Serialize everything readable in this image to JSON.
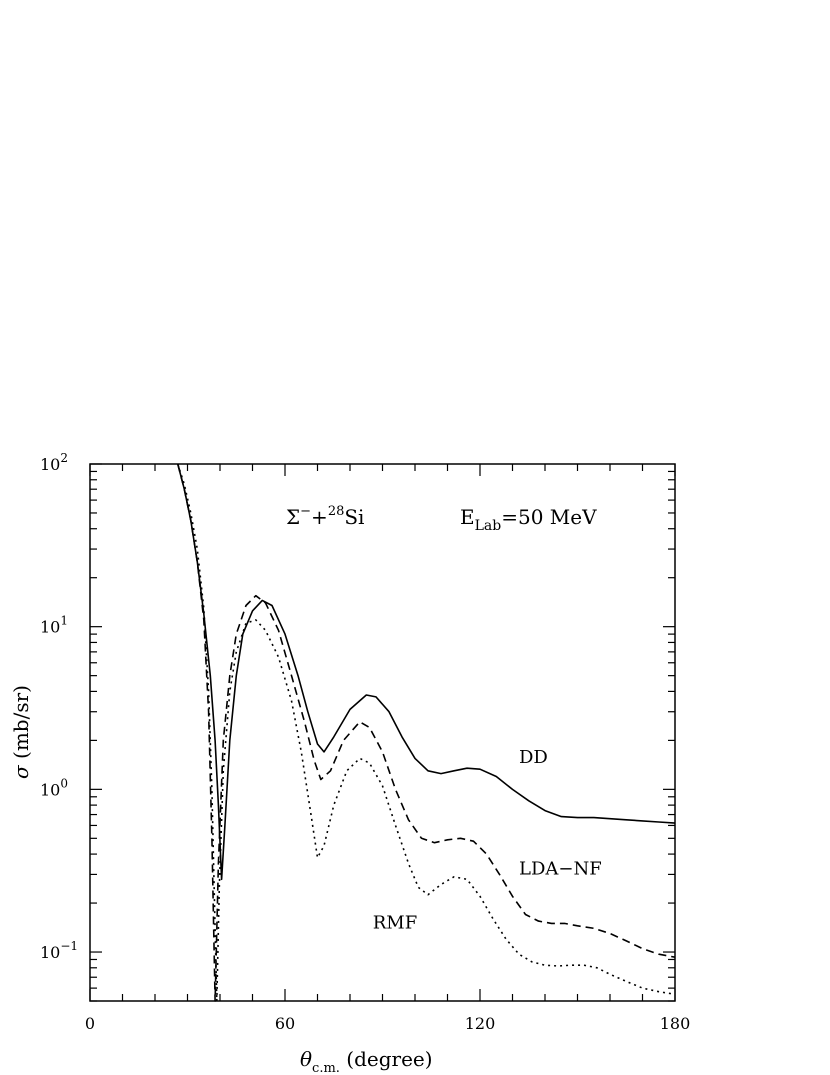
{
  "chart_data": {
    "type": "line",
    "title_parts": {
      "sigma": "Σ",
      "charge": "−",
      "plus": "+",
      "mass": "28",
      "element": "Si",
      "e": "E",
      "lab": "Lab",
      "energy": "=50  MeV"
    },
    "xlabel": {
      "symbol": "θ",
      "sub": "c.m.",
      "rest": " (degree)"
    },
    "ylabel": {
      "symbol": "σ",
      "rest": " (mb/sr)"
    },
    "xlim": [
      0,
      180
    ],
    "ylim": [
      0.05,
      100
    ],
    "yscale": "log",
    "x_ticks": [
      {
        "value": 0,
        "label": "0"
      },
      {
        "value": 60,
        "label": "60"
      },
      {
        "value": 120,
        "label": "120"
      },
      {
        "value": 180,
        "label": "180"
      }
    ],
    "y_ticks": [
      {
        "value": 100,
        "base": "10",
        "exp": "2"
      },
      {
        "value": 10,
        "base": "10",
        "exp": "1"
      },
      {
        "value": 1,
        "base": "10",
        "exp": "0"
      },
      {
        "value": 0.1,
        "base": "10",
        "exp": "−1"
      }
    ],
    "series": [
      {
        "name": "DD",
        "style": "solid",
        "label_at": [
          132,
          1.45
        ],
        "points": [
          [
            27,
            100
          ],
          [
            29,
            70
          ],
          [
            31,
            45
          ],
          [
            33,
            25
          ],
          [
            35,
            12
          ],
          [
            37,
            5
          ],
          [
            38.5,
            2
          ],
          [
            39.5,
            0.8
          ],
          [
            40.5,
            0.28
          ],
          [
            41.5,
            0.6
          ],
          [
            43,
            2
          ],
          [
            45,
            5
          ],
          [
            47,
            9
          ],
          [
            50,
            12.5
          ],
          [
            53,
            14.5
          ],
          [
            56,
            13.5
          ],
          [
            60,
            9
          ],
          [
            64,
            5
          ],
          [
            67,
            3
          ],
          [
            70,
            1.9
          ],
          [
            72,
            1.7
          ],
          [
            75,
            2.1
          ],
          [
            80,
            3.1
          ],
          [
            85,
            3.8
          ],
          [
            88,
            3.7
          ],
          [
            92,
            3.0
          ],
          [
            96,
            2.1
          ],
          [
            100,
            1.55
          ],
          [
            104,
            1.3
          ],
          [
            108,
            1.25
          ],
          [
            112,
            1.3
          ],
          [
            116,
            1.35
          ],
          [
            120,
            1.33
          ],
          [
            125,
            1.2
          ],
          [
            130,
            1.0
          ],
          [
            135,
            0.85
          ],
          [
            140,
            0.74
          ],
          [
            145,
            0.68
          ],
          [
            150,
            0.67
          ],
          [
            155,
            0.67
          ],
          [
            160,
            0.66
          ],
          [
            165,
            0.65
          ],
          [
            170,
            0.64
          ],
          [
            175,
            0.63
          ],
          [
            180,
            0.62
          ]
        ]
      },
      {
        "name": "LDA−NF",
        "style": "dashed",
        "label_at": [
          132,
          0.3
        ],
        "points": [
          [
            27,
            100
          ],
          [
            29,
            70
          ],
          [
            31,
            45
          ],
          [
            33,
            25
          ],
          [
            35,
            11
          ],
          [
            36.5,
            3
          ],
          [
            37.5,
            0.5
          ],
          [
            38.5,
            0.05
          ],
          [
            39.5,
            0.35
          ],
          [
            41,
            2
          ],
          [
            43,
            5
          ],
          [
            45,
            9
          ],
          [
            48,
            13.5
          ],
          [
            51,
            15.5
          ],
          [
            54,
            14
          ],
          [
            58,
            9.5
          ],
          [
            62,
            5
          ],
          [
            66,
            2.6
          ],
          [
            69,
            1.5
          ],
          [
            71,
            1.15
          ],
          [
            74,
            1.3
          ],
          [
            78,
            2.0
          ],
          [
            83,
            2.6
          ],
          [
            86,
            2.4
          ],
          [
            90,
            1.7
          ],
          [
            94,
            1.0
          ],
          [
            98,
            0.65
          ],
          [
            102,
            0.5
          ],
          [
            106,
            0.47
          ],
          [
            110,
            0.49
          ],
          [
            114,
            0.5
          ],
          [
            118,
            0.48
          ],
          [
            122,
            0.4
          ],
          [
            126,
            0.3
          ],
          [
            130,
            0.22
          ],
          [
            134,
            0.17
          ],
          [
            138,
            0.155
          ],
          [
            142,
            0.15
          ],
          [
            146,
            0.15
          ],
          [
            150,
            0.145
          ],
          [
            155,
            0.14
          ],
          [
            160,
            0.13
          ],
          [
            165,
            0.117
          ],
          [
            170,
            0.105
          ],
          [
            175,
            0.097
          ],
          [
            180,
            0.093
          ]
        ]
      },
      {
        "name": "RMF",
        "style": "dotted",
        "label_at": [
          87,
          0.14
        ],
        "points": [
          [
            27,
            100
          ],
          [
            29,
            75
          ],
          [
            31,
            50
          ],
          [
            33,
            30
          ],
          [
            35,
            13
          ],
          [
            36.5,
            4
          ],
          [
            37.5,
            1
          ],
          [
            38.3,
            0.2
          ],
          [
            39,
            0.05
          ],
          [
            39.8,
            0.25
          ],
          [
            41,
            1.3
          ],
          [
            43,
            4
          ],
          [
            45,
            7
          ],
          [
            48,
            10.5
          ],
          [
            51,
            11
          ],
          [
            54,
            9.5
          ],
          [
            58,
            6.5
          ],
          [
            62,
            3.5
          ],
          [
            65,
            1.7
          ],
          [
            68,
            0.7
          ],
          [
            70,
            0.38
          ],
          [
            72,
            0.45
          ],
          [
            75,
            0.8
          ],
          [
            79,
            1.3
          ],
          [
            83,
            1.55
          ],
          [
            86,
            1.45
          ],
          [
            90,
            1.05
          ],
          [
            94,
            0.6
          ],
          [
            98,
            0.35
          ],
          [
            101,
            0.25
          ],
          [
            104,
            0.225
          ],
          [
            108,
            0.26
          ],
          [
            112,
            0.29
          ],
          [
            116,
            0.28
          ],
          [
            120,
            0.22
          ],
          [
            124,
            0.16
          ],
          [
            128,
            0.12
          ],
          [
            132,
            0.097
          ],
          [
            136,
            0.087
          ],
          [
            140,
            0.083
          ],
          [
            144,
            0.082
          ],
          [
            148,
            0.083
          ],
          [
            152,
            0.083
          ],
          [
            156,
            0.08
          ],
          [
            160,
            0.073
          ],
          [
            165,
            0.066
          ],
          [
            170,
            0.06
          ],
          [
            175,
            0.057
          ],
          [
            180,
            0.055
          ]
        ]
      }
    ]
  }
}
